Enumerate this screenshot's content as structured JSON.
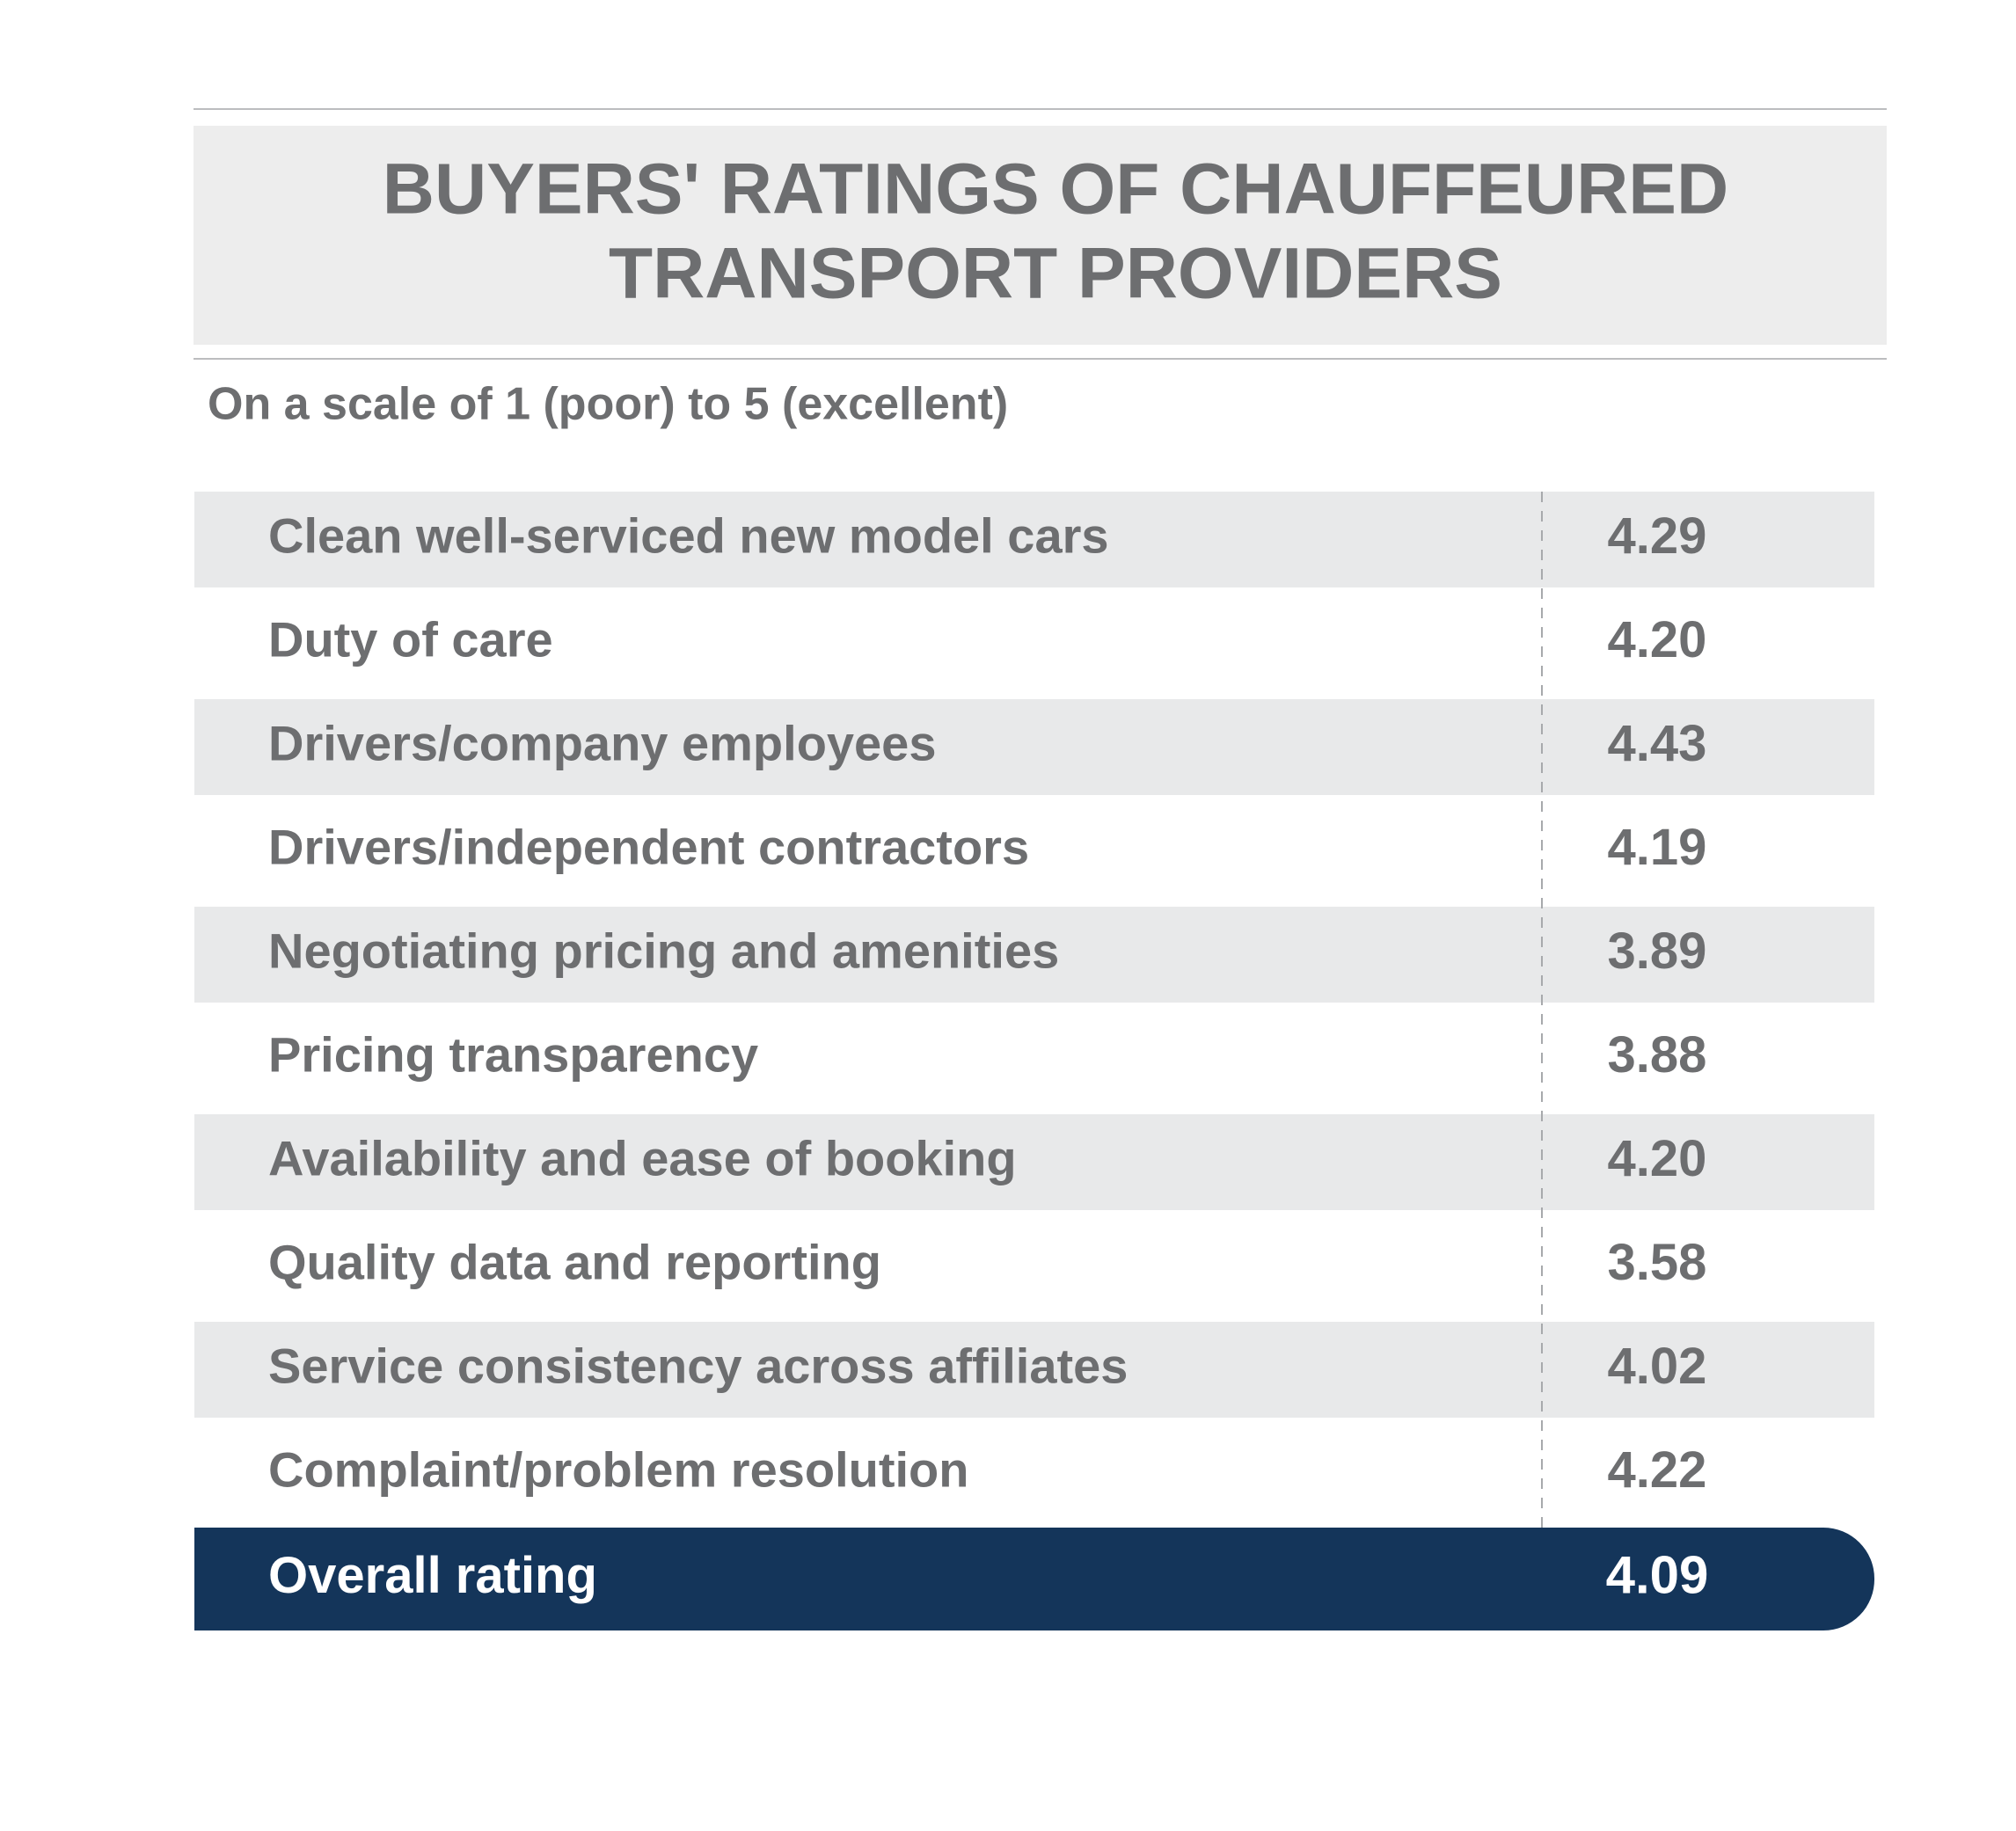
{
  "header": {
    "title": [
      "BUYERS' RATINGS OF CHAUFFEURED",
      "TRANSPORT PROVIDERS"
    ],
    "subtitle": "On a scale of 1 (poor) to 5 (excellent)"
  },
  "table": {
    "rows": [
      [
        "Clean well-serviced new model cars",
        "4.29"
      ],
      [
        "Duty of care",
        "4.20"
      ],
      [
        "Drivers/company employees",
        "4.43"
      ],
      [
        "Drivers/independent contractors",
        "4.19"
      ],
      [
        "Negotiating pricing and amenities",
        "3.89"
      ],
      [
        "Pricing transparency",
        "3.88"
      ],
      [
        "Availability and ease of booking",
        "4.20"
      ],
      [
        "Quality data and reporting",
        "3.58"
      ],
      [
        "Service consistency across affiliates",
        "4.02"
      ],
      [
        "Complaint/problem resolution",
        "4.22"
      ]
    ],
    "total": [
      "Overall rating",
      "4.09"
    ]
  }
}
